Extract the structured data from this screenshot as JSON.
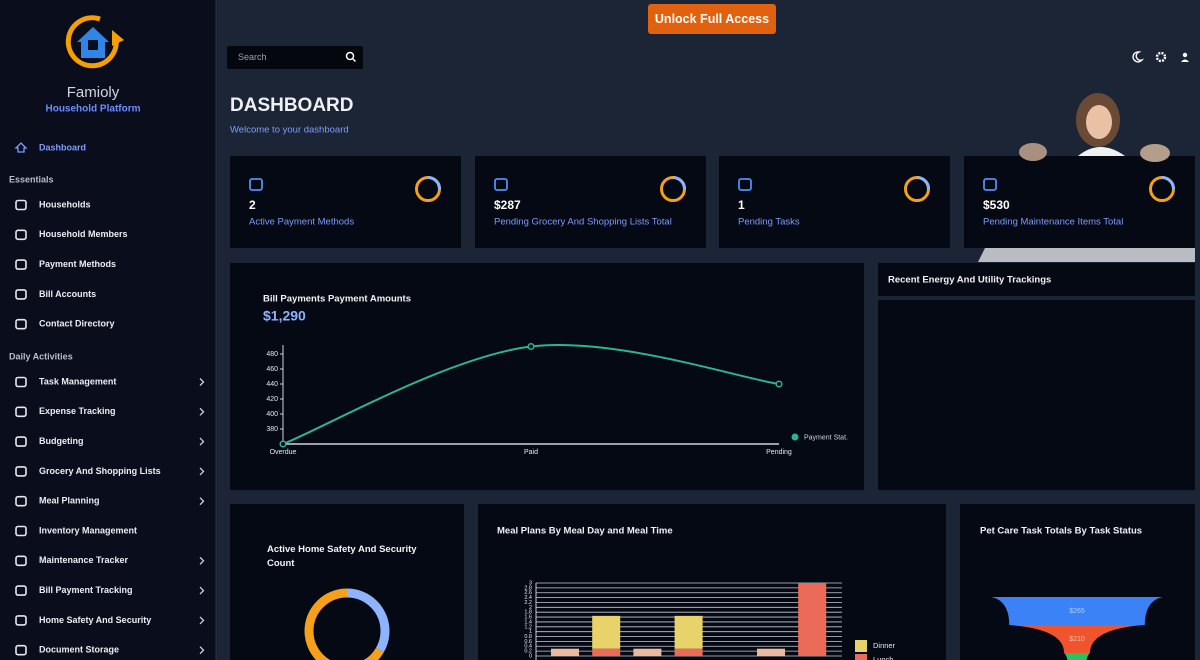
{
  "cta": "Unlock Full Access",
  "brand": {
    "name": "Famioly",
    "tagline": "Household Platform"
  },
  "search": {
    "placeholder": "Search"
  },
  "nav": {
    "active": "Dashboard",
    "sections": [
      {
        "title": "Essentials",
        "items": [
          {
            "label": "Households",
            "submenu": false
          },
          {
            "label": "Household Members",
            "submenu": false
          },
          {
            "label": "Payment Methods",
            "submenu": false
          },
          {
            "label": "Bill Accounts",
            "submenu": false
          },
          {
            "label": "Contact Directory",
            "submenu": false
          }
        ]
      },
      {
        "title": "Daily Activities",
        "items": [
          {
            "label": "Task Management",
            "submenu": true
          },
          {
            "label": "Expense Tracking",
            "submenu": true
          },
          {
            "label": "Budgeting",
            "submenu": true
          },
          {
            "label": "Grocery And Shopping Lists",
            "submenu": true
          },
          {
            "label": "Meal Planning",
            "submenu": true
          },
          {
            "label": "Inventory Management",
            "submenu": false
          },
          {
            "label": "Maintenance Tracker",
            "submenu": true
          },
          {
            "label": "Bill Payment Tracking",
            "submenu": true
          },
          {
            "label": "Home Safety And Security",
            "submenu": true
          },
          {
            "label": "Document Storage",
            "submenu": true
          }
        ]
      }
    ]
  },
  "header": {
    "title": "DASHBOARD",
    "subtitle": "Welcome to your dashboard"
  },
  "stats": [
    {
      "value": "2",
      "label": "Active Payment Methods"
    },
    {
      "value": "$287",
      "label": "Pending Grocery And Shopping Lists Total"
    },
    {
      "value": "1",
      "label": "Pending Tasks"
    },
    {
      "value": "$530",
      "label": "Pending Maintenance Items Total"
    }
  ],
  "energy_panel": {
    "title": "Recent Energy And Utility Trackings"
  },
  "chart_data": [
    {
      "type": "line",
      "title": "Bill Payments Payment Amounts",
      "subtitle": "$1,290",
      "categories": [
        "Overdue",
        "Paid",
        "Pending"
      ],
      "series": [
        {
          "name": "Payment Stat.",
          "color": "#2fb38f",
          "values": [
            360,
            490,
            440
          ]
        }
      ],
      "ylim": [
        360,
        492
      ],
      "yticks": [
        380,
        400,
        420,
        440,
        460,
        480
      ],
      "legend": "bottom-right"
    },
    {
      "type": "donut",
      "title": "Active Home Safety And Security Count",
      "values": [
        1,
        2
      ],
      "colors": [
        "#8fb4ff",
        "#f5a01a"
      ]
    },
    {
      "type": "stacked-bar",
      "title": "Meal Plans By Meal Day and Meal Time",
      "categories": [
        null,
        null,
        null,
        null,
        null,
        null,
        null
      ],
      "series": [
        {
          "color": "#e9b9a0",
          "values": [
            0.3,
            0,
            0.3,
            0,
            0,
            0.3,
            0
          ]
        },
        {
          "name": "Lunch",
          "color": "#ec6a58",
          "values": [
            0,
            0.3,
            0,
            0.3,
            0,
            0,
            3
          ]
        },
        {
          "name": "Dinner",
          "color": "#e8d26a",
          "values": [
            0,
            1.35,
            0,
            1.35,
            0,
            0,
            0
          ]
        }
      ],
      "ylim": [
        0,
        3
      ],
      "yticks": [
        0,
        0.2,
        0.4,
        0.6,
        0.8,
        1,
        1.2,
        1.4,
        1.6,
        1.8,
        2,
        2.2,
        2.4,
        2.6,
        2.8,
        3
      ],
      "grid": true,
      "legend": "right"
    },
    {
      "type": "funnel",
      "title": "Pet Care Task Totals By Task Status",
      "values": [
        265,
        210,
        40
      ],
      "value_labels": [
        "$265",
        "$210",
        null
      ],
      "colors": [
        "#3b82f6",
        "#f0542d",
        "#22c55e"
      ]
    }
  ]
}
